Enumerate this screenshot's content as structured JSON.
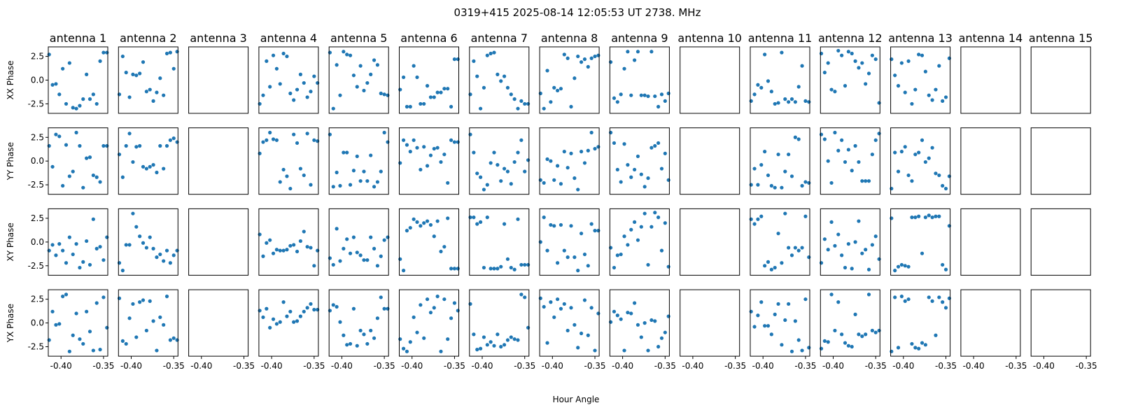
{
  "chart_data": {
    "type": "scatter",
    "title": "0319+415  2025-08-14 12:05:53 UT  2738. MHz",
    "xlabel": "Hour Angle",
    "columns": [
      "antenna 1",
      "antenna 2",
      "antenna 3",
      "antenna 4",
      "antenna 5",
      "antenna 6",
      "antenna 7",
      "antenna 8",
      "antenna 9",
      "antenna 10",
      "antenna 11",
      "antenna 12",
      "antenna 13",
      "antenna 14",
      "antenna 15"
    ],
    "rows": [
      "XX Phase",
      "YY Phase",
      "XY Phase",
      "YX Phase"
    ],
    "xlim": [
      -0.415,
      -0.345
    ],
    "ylim": [
      -3.5,
      3.5
    ],
    "xticks": [
      -0.4,
      -0.35
    ],
    "xtick_labels": [
      "-0.40",
      "-0.35"
    ],
    "yticks": [
      -2.5,
      0.0,
      2.5
    ],
    "ytick_labels": [
      "-2.5",
      "0.0",
      "2.5"
    ],
    "grid": false,
    "marker_color": "#1f77b4",
    "x": [
      -0.414,
      -0.41,
      -0.406,
      -0.402,
      -0.398,
      -0.394,
      -0.39,
      -0.386,
      -0.382,
      -0.378,
      -0.374,
      -0.37,
      -0.366,
      -0.362,
      -0.358,
      -0.354,
      -0.35,
      -0.346
    ],
    "empty_columns": [
      3,
      10,
      14,
      15
    ],
    "phases": {
      "1": [
        [
          2.7,
          -0.5,
          -0.4,
          -1.5,
          1.2,
          -2.5,
          1.8,
          -2.9,
          -3.0,
          -2.7,
          -2.0,
          0.6,
          -2.0,
          -1.5,
          -2.5,
          2.0,
          2.9,
          2.9
        ],
        [
          1.6,
          -0.6,
          2.8,
          2.6,
          -2.6,
          1.7,
          -1.6,
          -1.1,
          3.0,
          1.6,
          -2.8,
          0.3,
          0.4,
          -1.5,
          -1.7,
          -2.2,
          1.6,
          1.6
        ],
        [
          -0.9,
          -0.3,
          -1.4,
          -0.2,
          -0.9,
          -2.2,
          0.5,
          -1.3,
          -0.2,
          -2.7,
          -2.1,
          0.1,
          -2.4,
          2.4,
          -0.7,
          -0.5,
          -1.9,
          0.5
        ],
        [
          -1.8,
          1.2,
          -0.2,
          -0.1,
          2.8,
          3.0,
          -3.0,
          -1.3,
          1.0,
          -1.7,
          -2.2,
          1.2,
          -0.9,
          -2.9,
          2.1,
          -2.8,
          2.7,
          -0.5
        ]
      ],
      "2": [
        [
          -1.5,
          2.5,
          0.8,
          -1.8,
          0.6,
          0.5,
          0.7,
          1.9,
          -1.2,
          -1.0,
          -2.2,
          -1.3,
          0.2,
          -1.6,
          2.8,
          2.9,
          1.2,
          3.0
        ],
        [
          0.7,
          -1.7,
          1.6,
          2.9,
          -0.1,
          1.5,
          1.6,
          -0.6,
          -0.8,
          -0.6,
          -0.4,
          -1.2,
          1.6,
          -0.8,
          1.6,
          2.2,
          2.4,
          2.0
        ],
        [
          -2.2,
          -3.0,
          -0.3,
          -0.3,
          3.0,
          1.6,
          0.6,
          -0.1,
          -0.6,
          0.5,
          -0.7,
          -1.6,
          -1.3,
          -2.0,
          -0.9,
          -2.2,
          -1.4,
          -0.9
        ],
        [
          2.6,
          -1.9,
          -2.2,
          0.5,
          2.0,
          -1.5,
          2.2,
          2.4,
          -0.8,
          2.3,
          0.2,
          -2.9,
          0.6,
          -0.2,
          2.8,
          -1.8,
          -1.6,
          -1.8
        ]
      ],
      "4": [
        [
          -2.5,
          -1.6,
          2.0,
          -0.7,
          2.6,
          1.2,
          -0.4,
          2.8,
          2.5,
          -1.4,
          -2.1,
          -1.0,
          0.6,
          -0.3,
          -1.8,
          -1.2,
          0.4,
          -0.3
        ],
        [
          0.8,
          2.0,
          2.2,
          3.0,
          2.3,
          2.2,
          -2.2,
          -0.9,
          -1.6,
          -2.9,
          2.8,
          1.9,
          -0.8,
          -1.5,
          2.9,
          -2.5,
          2.2,
          2.1
        ],
        [
          0.8,
          -1.5,
          -0.1,
          0.2,
          -1.2,
          -0.8,
          -0.9,
          -0.9,
          -0.8,
          -0.4,
          -0.3,
          -1.0,
          0.1,
          1.1,
          -0.5,
          -0.6,
          -2.5,
          -0.9
        ],
        [
          1.3,
          0.6,
          1.5,
          -0.5,
          0.4,
          -0.1,
          0.1,
          2.2,
          0.7,
          1.2,
          0.1,
          0.2,
          0.7,
          1.2,
          1.6,
          2.0,
          1.4,
          1.4
        ]
      ],
      "5": [
        [
          2.9,
          -3.0,
          1.6,
          -1.6,
          3.0,
          2.7,
          2.6,
          0.5,
          -0.7,
          1.5,
          -1.1,
          -0.3,
          0.6,
          2.1,
          1.6,
          -1.4,
          -1.5,
          -1.6
        ],
        [
          2.8,
          -2.7,
          -1.2,
          -2.6,
          0.9,
          0.9,
          -2.5,
          -1.0,
          0.5,
          -2.1,
          -1.1,
          -2.1,
          0.6,
          -2.7,
          -2.2,
          -1.1,
          3.0,
          2.0
        ],
        [
          -1.7,
          -2.4,
          1.4,
          -2.0,
          -0.7,
          0.3,
          -1.2,
          0.5,
          -1.1,
          -1.4,
          -1.9,
          -1.9,
          0.5,
          -0.7,
          -2.5,
          -1.5,
          0.2,
          0.5
        ],
        [
          1.3,
          1.9,
          1.7,
          0.1,
          -1.3,
          -2.3,
          -2.2,
          1.5,
          -2.4,
          -0.8,
          -1.2,
          -2.2,
          -0.8,
          -1.6,
          0.5,
          2.7,
          1.5,
          1.5
        ]
      ],
      "6": [
        [
          -1.0,
          0.3,
          -2.8,
          -2.8,
          1.5,
          0.3,
          -2.5,
          -2.5,
          -0.6,
          -1.8,
          -1.8,
          -1.3,
          -1.3,
          -0.9,
          -0.9,
          -2.8,
          2.2,
          2.2
        ],
        [
          -0.2,
          2.2,
          1.7,
          1.0,
          2.2,
          1.4,
          -0.9,
          1.5,
          -0.5,
          0.6,
          1.3,
          1.4,
          -0.1,
          0.7,
          -2.3,
          2.2,
          2.0,
          2.0
        ],
        [
          -1.8,
          -3.0,
          1.2,
          1.5,
          2.4,
          2.1,
          1.7,
          2.0,
          2.2,
          1.8,
          0.6,
          2.2,
          -1.0,
          -0.5,
          2.5,
          -2.8,
          -2.8,
          -2.8
        ],
        [
          -1.7,
          -2.7,
          -3.0,
          -2.0,
          0.6,
          -1.0,
          1.9,
          -1.6,
          2.5,
          1.1,
          1.6,
          2.8,
          -3.0,
          2.5,
          -1.7,
          0.5,
          2.1,
          1.3
        ]
      ],
      "7": [
        [
          -1.5,
          2.0,
          0.4,
          -3.0,
          -0.8,
          2.6,
          2.8,
          2.9,
          0.6,
          -0.1,
          0.4,
          -0.8,
          -1.5,
          -2.0,
          -3.0,
          -2.2,
          -2.5,
          -2.5
        ],
        [
          2.8,
          0.9,
          -1.3,
          -1.7,
          -3.0,
          -2.5,
          -0.2,
          0.9,
          -0.4,
          -2.1,
          -0.8,
          -1.1,
          -2.4,
          -0.1,
          0.9,
          2.2,
          -1.1,
          0.1
        ],
        [
          2.6,
          2.6,
          1.9,
          2.1,
          -2.7,
          2.6,
          -2.8,
          -2.8,
          -2.8,
          -2.6,
          1.9,
          -1.8,
          -2.7,
          -2.9,
          2.4,
          -2.4,
          -2.4,
          -2.4
        ],
        [
          2.0,
          -1.2,
          -2.8,
          -2.7,
          -1.5,
          -2.3,
          -2.0,
          -2.4,
          -1.2,
          -2.5,
          -2.3,
          -1.8,
          -1.5,
          -1.7,
          -1.8,
          3.0,
          2.7,
          -0.5
        ]
      ],
      "8": [
        [
          -1.4,
          -3.0,
          1.0,
          -2.3,
          -0.8,
          -1.1,
          -0.9,
          2.7,
          2.3,
          -2.8,
          0.2,
          2.5,
          1.9,
          2.2,
          1.4,
          2.3,
          2.5,
          2.6
        ],
        [
          -2.0,
          -2.3,
          0.2,
          0.0,
          -2.0,
          -0.5,
          -2.4,
          1.0,
          -0.7,
          0.8,
          -1.8,
          -3.0,
          1.0,
          -0.2,
          1.1,
          3.0,
          1.3,
          1.5
        ],
        [
          0.0,
          2.6,
          -0.9,
          1.8,
          1.7,
          -2.2,
          1.8,
          -0.9,
          -1.6,
          1.7,
          -1.6,
          -3.0,
          0.9,
          -1.3,
          -2.5,
          1.9,
          1.2,
          1.2
        ],
        [
          2.6,
          1.7,
          -2.1,
          2.2,
          0.6,
          2.5,
          1.5,
          2.0,
          -0.8,
          1.6,
          -0.2,
          -2.6,
          -1.1,
          2.4,
          -1.3,
          1.6,
          -2.9,
          1.0
        ]
      ],
      "9": [
        [
          1.9,
          -1.9,
          -2.3,
          -1.5,
          1.2,
          3.0,
          -1.6,
          2.1,
          3.0,
          -1.6,
          -1.6,
          -1.7,
          3.0,
          -1.7,
          -2.8,
          -1.5,
          -2.2,
          -1.4
        ],
        [
          3.0,
          1.9,
          -0.9,
          -2.2,
          1.8,
          -0.4,
          -1.7,
          -0.9,
          0.5,
          -1.4,
          -2.7,
          -1.8,
          1.4,
          1.6,
          1.9,
          -0.8,
          0.8,
          -2.0
        ],
        [
          -0.6,
          -2.7,
          -1.4,
          -1.3,
          0.6,
          -0.3,
          1.3,
          2.1,
          0.2,
          1.6,
          3.0,
          -2.4,
          1.6,
          3.1,
          2.6,
          -0.9,
          2.0,
          -2.6
        ],
        [
          0.1,
          1.2,
          0.8,
          0.4,
          -2.9,
          1.1,
          1.0,
          2.1,
          -0.2,
          -1.5,
          0.0,
          -2.9,
          0.3,
          0.2,
          -2.5,
          -1.6,
          -1.0,
          0.7
        ]
      ],
      "11": [
        [
          -2.2,
          -1.5,
          -0.5,
          -0.8,
          2.7,
          -0.1,
          -1.2,
          -2.5,
          -2.4,
          2.9,
          -2.0,
          -2.3,
          -2.0,
          -2.3,
          -0.7,
          1.5,
          -2.2,
          -2.3
        ],
        [
          -2.5,
          -0.8,
          -2.5,
          -0.4,
          1.0,
          -1.5,
          -2.6,
          -2.8,
          0.7,
          -2.8,
          -1.1,
          0.7,
          -1.6,
          2.5,
          2.3,
          -2.6,
          -2.2,
          -2.3
        ],
        [
          2.4,
          1.9,
          2.4,
          2.7,
          -2.5,
          -2.1,
          -2.9,
          -2.7,
          0.9,
          -2.2,
          3.0,
          -0.6,
          -1.4,
          -0.6,
          -0.9,
          -0.6,
          2.7,
          -1.6
        ],
        [
          1.2,
          -0.4,
          0.8,
          2.2,
          -0.3,
          -0.3,
          -1.2,
          0.9,
          2.0,
          -2.3,
          0.3,
          2.0,
          -3.0,
          0.2,
          -1.8,
          -2.9,
          2.5,
          -2.6
        ]
      ],
      "12": [
        [
          2.8,
          0.8,
          1.8,
          -1.0,
          -1.2,
          3.1,
          2.6,
          -0.6,
          3.0,
          2.8,
          2.0,
          1.3,
          1.8,
          -0.4,
          0.7,
          2.6,
          2.2,
          -2.4
        ],
        [
          2.8,
          2.3,
          0.0,
          -2.3,
          3.0,
          1.1,
          2.2,
          -0.1,
          1.2,
          -1.0,
          1.6,
          -0.1,
          -2.1,
          -2.1,
          -2.1,
          0.7,
          2.2,
          2.9
        ],
        [
          -2.2,
          0.3,
          -0.8,
          2.1,
          -0.4,
          0.8,
          -1.4,
          -2.7,
          -0.2,
          -2.8,
          0.0,
          2.2,
          -1.2,
          -0.8,
          -2.9,
          -0.3,
          0.6,
          -1.8
        ],
        [
          -2.7,
          -1.9,
          -2.0,
          3.0,
          -0.8,
          2.2,
          -1.2,
          -2.1,
          -2.4,
          -2.5,
          0.9,
          -1.2,
          -1.4,
          -1.2,
          3.0,
          -0.8,
          -1.0,
          -0.8
        ]
      ],
      "13": [
        [
          2.2,
          0.5,
          -0.6,
          1.8,
          -1.3,
          2.0,
          -2.5,
          -1.0,
          2.7,
          2.6,
          0.9,
          -1.6,
          -2.1,
          -1.0,
          1.5,
          -2.2,
          -1.8,
          2.3
        ],
        [
          -2.9,
          0.9,
          -1.1,
          1.0,
          1.5,
          -1.5,
          -2.1,
          0.7,
          0.9,
          2.2,
          -0.1,
          0.3,
          1.4,
          -1.3,
          -1.5,
          -2.6,
          -2.9,
          -1.6
        ],
        [
          2.5,
          -3.0,
          -2.6,
          -2.4,
          -2.5,
          -2.6,
          2.6,
          2.6,
          2.7,
          -1.2,
          2.6,
          2.8,
          2.6,
          2.7,
          2.7,
          -2.4,
          -2.9,
          1.7
        ],
        [
          -3.0,
          2.7,
          -2.6,
          2.8,
          2.3,
          2.5,
          -2.2,
          -2.6,
          -2.7,
          -2.1,
          -2.3,
          2.7,
          2.3,
          -1.3,
          2.7,
          2.2,
          1.6,
          2.6
        ]
      ]
    }
  }
}
